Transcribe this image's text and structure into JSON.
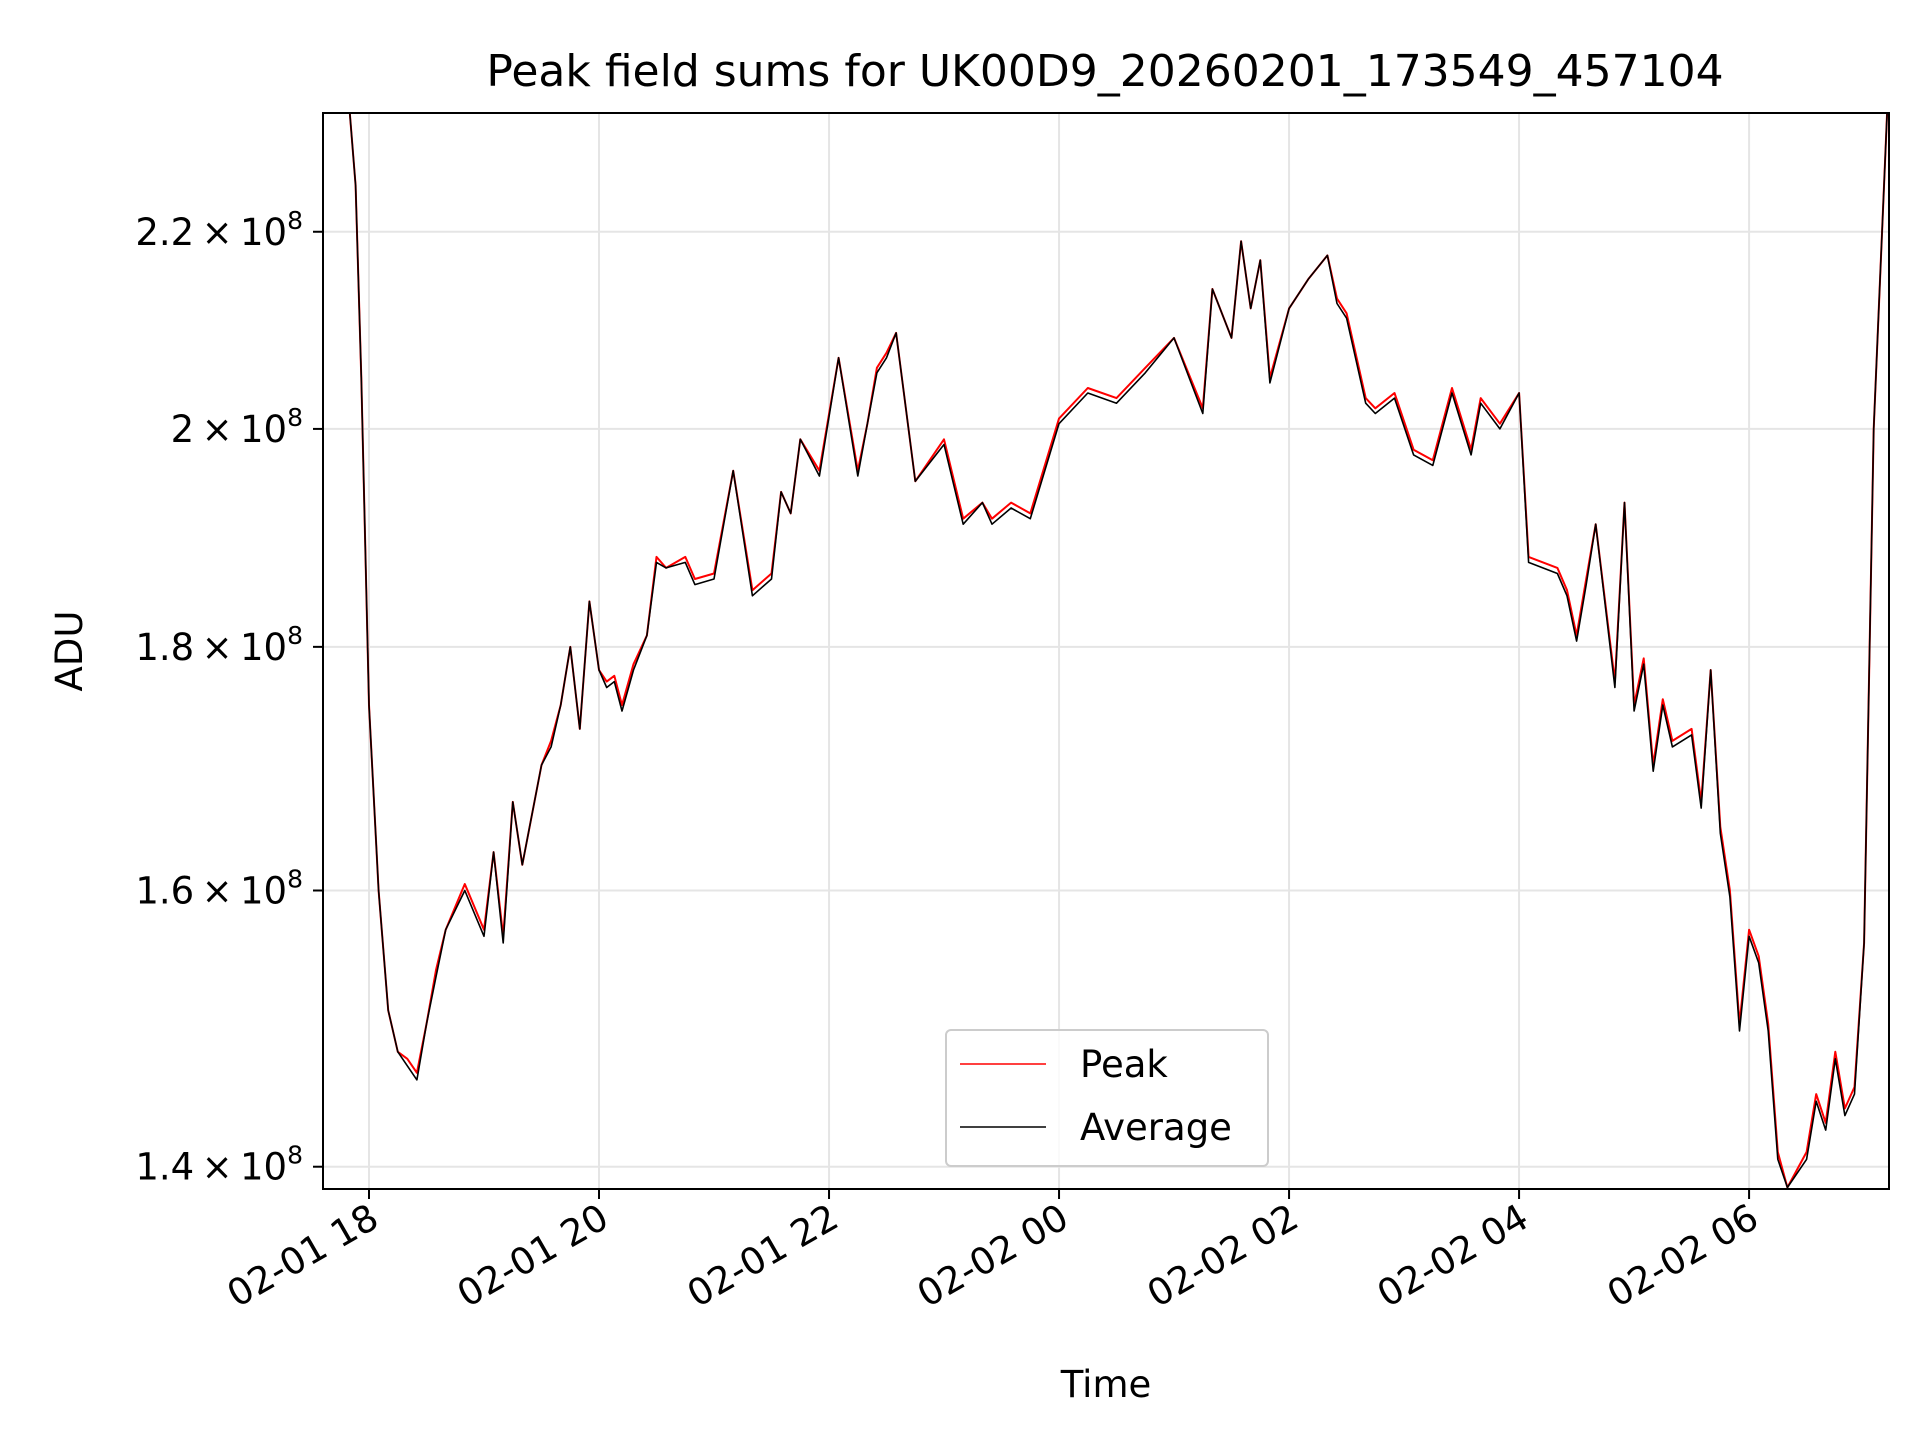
{
  "chart_data": {
    "type": "line",
    "title": "Peak field sums for UK00D9_20260201_173549_457104",
    "xlabel": "Time",
    "ylabel": "ADU",
    "y_scale": "log",
    "grid": true,
    "legend_position": "lower center",
    "xlim": [
      "2026-02-01 17:36",
      "2026-02-02 07:13"
    ],
    "ylim": [
      138500000,
      233000000
    ],
    "x_ticks": [
      {
        "value": "2026-02-01 18:00",
        "label": "02-01 18"
      },
      {
        "value": "2026-02-01 20:00",
        "label": "02-01 20"
      },
      {
        "value": "2026-02-01 22:00",
        "label": "02-01 22"
      },
      {
        "value": "2026-02-02 00:00",
        "label": "02-02 00"
      },
      {
        "value": "2026-02-02 02:00",
        "label": "02-02 02"
      },
      {
        "value": "2026-02-02 04:00",
        "label": "02-02 04"
      },
      {
        "value": "2026-02-02 06:00",
        "label": "02-02 06"
      }
    ],
    "y_ticks": [
      {
        "value": 140000000,
        "mantissa": "1.4",
        "base": "10",
        "exp": "8"
      },
      {
        "value": 160000000,
        "mantissa": "1.6",
        "base": "10",
        "exp": "8"
      },
      {
        "value": 180000000,
        "mantissa": "1.8",
        "base": "10",
        "exp": "8"
      },
      {
        "value": 200000000,
        "mantissa": "2",
        "base": "10",
        "exp": "8"
      },
      {
        "value": 220000000,
        "mantissa": "2.2",
        "base": "10",
        "exp": "8"
      }
    ],
    "x": [
      "2026-02-01 17:50",
      "2026-02-01 17:53",
      "2026-02-01 17:56",
      "2026-02-01 18:00",
      "2026-02-01 18:05",
      "2026-02-01 18:10",
      "2026-02-01 18:15",
      "2026-02-01 18:20",
      "2026-02-01 18:25",
      "2026-02-01 18:30",
      "2026-02-01 18:35",
      "2026-02-01 18:40",
      "2026-02-01 18:50",
      "2026-02-01 19:00",
      "2026-02-01 19:05",
      "2026-02-01 19:10",
      "2026-02-01 19:15",
      "2026-02-01 19:20",
      "2026-02-01 19:30",
      "2026-02-01 19:35",
      "2026-02-01 19:40",
      "2026-02-01 19:45",
      "2026-02-01 19:50",
      "2026-02-01 19:55",
      "2026-02-01 20:00",
      "2026-02-01 20:04",
      "2026-02-01 20:08",
      "2026-02-01 20:12",
      "2026-02-01 20:18",
      "2026-02-01 20:25",
      "2026-02-01 20:30",
      "2026-02-01 20:35",
      "2026-02-01 20:45",
      "2026-02-01 20:50",
      "2026-02-01 21:00",
      "2026-02-01 21:10",
      "2026-02-01 21:20",
      "2026-02-01 21:30",
      "2026-02-01 21:35",
      "2026-02-01 21:40",
      "2026-02-01 21:45",
      "2026-02-01 21:55",
      "2026-02-01 22:05",
      "2026-02-01 22:15",
      "2026-02-01 22:20",
      "2026-02-01 22:25",
      "2026-02-01 22:30",
      "2026-02-01 22:35",
      "2026-02-01 22:45",
      "2026-02-01 23:00",
      "2026-02-01 23:10",
      "2026-02-01 23:20",
      "2026-02-01 23:25",
      "2026-02-01 23:35",
      "2026-02-01 23:45",
      "2026-02-02 00:00",
      "2026-02-02 00:15",
      "2026-02-02 00:30",
      "2026-02-02 00:45",
      "2026-02-02 01:00",
      "2026-02-02 01:15",
      "2026-02-02 01:20",
      "2026-02-02 01:30",
      "2026-02-02 01:35",
      "2026-02-02 01:40",
      "2026-02-02 01:45",
      "2026-02-02 01:50",
      "2026-02-02 02:00",
      "2026-02-02 02:10",
      "2026-02-02 02:20",
      "2026-02-02 02:25",
      "2026-02-02 02:30",
      "2026-02-02 02:40",
      "2026-02-02 02:45",
      "2026-02-02 02:55",
      "2026-02-02 03:05",
      "2026-02-02 03:15",
      "2026-02-02 03:25",
      "2026-02-02 03:35",
      "2026-02-02 03:40",
      "2026-02-02 03:50",
      "2026-02-02 04:00",
      "2026-02-02 04:05",
      "2026-02-02 04:20",
      "2026-02-02 04:25",
      "2026-02-02 04:30",
      "2026-02-02 04:35",
      "2026-02-02 04:40",
      "2026-02-02 04:50",
      "2026-02-02 04:55",
      "2026-02-02 05:00",
      "2026-02-02 05:05",
      "2026-02-02 05:10",
      "2026-02-02 05:15",
      "2026-02-02 05:20",
      "2026-02-02 05:30",
      "2026-02-02 05:35",
      "2026-02-02 05:40",
      "2026-02-02 05:45",
      "2026-02-02 05:50",
      "2026-02-02 05:55",
      "2026-02-02 06:00",
      "2026-02-02 06:05",
      "2026-02-02 06:10",
      "2026-02-02 06:15",
      "2026-02-02 06:20",
      "2026-02-02 06:30",
      "2026-02-02 06:35",
      "2026-02-02 06:40",
      "2026-02-02 06:45",
      "2026-02-02 06:50",
      "2026-02-02 06:55",
      "2026-02-02 07:00",
      "2026-02-02 07:05",
      "2026-02-02 07:12"
    ],
    "series": [
      {
        "name": "Peak",
        "color": "#ff0000",
        "values": [
          233000000,
          225000000,
          205000000,
          175000000,
          160000000,
          151000000,
          148000000,
          147500000,
          146500000,
          150000000,
          154000000,
          157000000,
          160500000,
          157000000,
          163000000,
          156500000,
          167000000,
          162000000,
          170000000,
          172000000,
          175000000,
          180000000,
          173000000,
          184000000,
          178000000,
          177000000,
          177500000,
          175000000,
          178500000,
          181000000,
          188000000,
          187000000,
          188000000,
          186000000,
          186500000,
          196000000,
          185000000,
          186500000,
          194000000,
          192000000,
          199000000,
          196000000,
          207000000,
          196000000,
          200500000,
          206000000,
          207500000,
          209500000,
          195000000,
          199000000,
          191500000,
          193000000,
          191500000,
          193000000,
          192000000,
          201000000,
          204000000,
          203000000,
          206000000,
          209000000,
          202000000,
          214000000,
          209000000,
          219000000,
          212000000,
          217000000,
          205000000,
          212000000,
          215000000,
          217500000,
          213000000,
          211500000,
          203000000,
          202000000,
          203500000,
          198000000,
          197000000,
          204000000,
          198000000,
          203000000,
          200500000,
          203500000,
          188000000,
          187000000,
          185000000,
          181000000,
          186000000,
          191000000,
          177000000,
          193000000,
          175000000,
          179000000,
          170000000,
          175500000,
          172000000,
          173000000,
          167000000,
          178000000,
          165000000,
          160000000,
          150000000,
          157000000,
          155000000,
          150000000,
          141000000,
          138600000,
          141000000,
          145000000,
          143000000,
          148000000,
          144000000,
          145500000,
          156000000,
          200000000,
          233000000
        ]
      },
      {
        "name": "Average",
        "color": "#000000",
        "values": [
          233000000,
          225000000,
          205000000,
          175000000,
          160000000,
          151000000,
          148000000,
          147000000,
          146000000,
          150000000,
          153500000,
          157000000,
          160000000,
          156500000,
          163000000,
          156000000,
          167000000,
          162000000,
          170000000,
          171500000,
          175000000,
          180000000,
          173000000,
          184000000,
          178000000,
          176500000,
          177000000,
          174500000,
          178000000,
          181000000,
          187500000,
          187000000,
          187500000,
          185500000,
          186000000,
          196000000,
          184500000,
          186000000,
          194000000,
          192000000,
          199000000,
          195500000,
          207000000,
          195500000,
          200500000,
          205500000,
          207000000,
          209500000,
          195000000,
          198500000,
          191000000,
          193000000,
          191000000,
          192500000,
          191500000,
          200500000,
          203500000,
          202500000,
          205500000,
          209000000,
          201500000,
          214000000,
          209000000,
          219000000,
          212000000,
          217000000,
          204500000,
          212000000,
          215000000,
          217500000,
          212500000,
          211000000,
          202500000,
          201500000,
          203000000,
          197500000,
          196500000,
          203500000,
          197500000,
          202500000,
          200000000,
          203500000,
          187500000,
          186500000,
          184500000,
          180500000,
          185500000,
          191000000,
          176500000,
          193000000,
          174500000,
          178500000,
          169500000,
          175000000,
          171500000,
          172500000,
          166500000,
          178000000,
          164500000,
          159500000,
          149500000,
          156500000,
          154500000,
          149500000,
          140500000,
          138600000,
          140500000,
          144500000,
          142500000,
          147500000,
          143500000,
          145000000,
          156000000,
          200000000,
          233000000
        ]
      }
    ]
  }
}
